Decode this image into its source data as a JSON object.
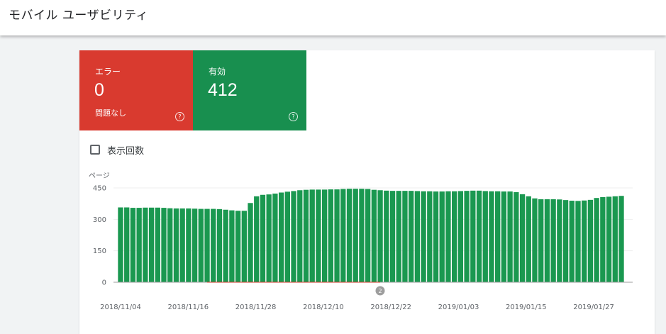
{
  "header": {
    "title": "モバイル ユーザビリティ"
  },
  "summary": {
    "error": {
      "label": "エラー",
      "count": "0",
      "sub": "問題なし",
      "help": "?"
    },
    "valid": {
      "label": "有効",
      "count": "412",
      "help": "?"
    }
  },
  "impressions_label": "表示回数",
  "annotation_label": "2",
  "colors": {
    "error": "#d93a2f",
    "valid": "#188f4f",
    "bar": "#1a9850"
  },
  "chart_data": {
    "type": "bar",
    "ylabel": "ページ",
    "ylim": [
      0,
      450
    ],
    "yticks": [
      "0",
      "150",
      "300",
      "450"
    ],
    "xtick_labels": [
      "2018/11/04",
      "2018/11/16",
      "2018/11/28",
      "2018/12/10",
      "2018/12/22",
      "2019/01/03",
      "2019/01/15",
      "2019/01/27"
    ],
    "grid": true,
    "series": [
      {
        "values": [
          357,
          357,
          355,
          355,
          356,
          356,
          356,
          355,
          353,
          352,
          352,
          352,
          351,
          350,
          350,
          350,
          349,
          346,
          343,
          341,
          341,
          378,
          410,
          417,
          419,
          423,
          428,
          432,
          435,
          439,
          441,
          442,
          442,
          442,
          443,
          443,
          445,
          446,
          446,
          446,
          445,
          441,
          439,
          437,
          436,
          436,
          436,
          436,
          435,
          434,
          434,
          433,
          433,
          434,
          434,
          435,
          436,
          437,
          437,
          435,
          434,
          434,
          433,
          433,
          430,
          420,
          410,
          400,
          396,
          396,
          396,
          395,
          392,
          389,
          388,
          390,
          393,
          402,
          406,
          408,
          410,
          412
        ]
      }
    ]
  }
}
